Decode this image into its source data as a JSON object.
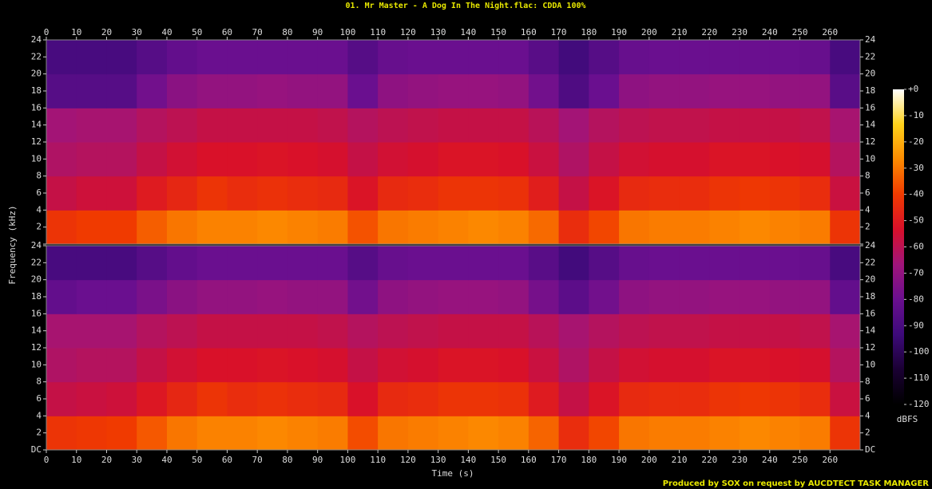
{
  "chart_data": {
    "type": "heatmap",
    "title": "01. Mr Master - A Dog In The Night.flac: CDDA 100%",
    "xlabel": "Time (s)",
    "ylabel": "Frequency (kHz)",
    "footer": "Produced by SOX on request by AUCDTECT TASK MANAGER",
    "xlim": [
      0,
      270
    ],
    "xticks": [
      0,
      10,
      20,
      30,
      40,
      50,
      60,
      70,
      80,
      90,
      100,
      110,
      120,
      130,
      140,
      150,
      160,
      170,
      180,
      190,
      200,
      210,
      220,
      230,
      240,
      250,
      260
    ],
    "ylim": [
      0,
      24
    ],
    "yticks": [
      {
        "value": 0,
        "label": "DC"
      },
      2,
      4,
      6,
      8,
      10,
      12,
      14,
      16,
      18,
      20,
      22,
      24
    ],
    "bins": [
      0,
      10,
      20,
      30,
      40,
      50,
      60,
      70,
      80,
      90,
      100,
      110,
      120,
      130,
      140,
      150,
      160,
      170,
      180,
      190,
      200,
      210,
      220,
      230,
      240,
      250,
      260,
      270
    ],
    "ybins": [
      0,
      4,
      8,
      12,
      16,
      20,
      24
    ],
    "colorbar": {
      "label": "dBFS",
      "lim": [
        -120,
        0
      ],
      "ticks": [
        {
          "value": 0,
          "label": "+0"
        },
        -10,
        -20,
        -30,
        -40,
        -50,
        -60,
        -70,
        -80,
        -90,
        -100,
        -110,
        -120
      ],
      "colors": [
        "#000000",
        "#1a0033",
        "#3d0a7a",
        "#6a0f8f",
        "#a0147a",
        "#d8102a",
        "#f03a00",
        "#fc8a00",
        "#ffd21a",
        "#ffffff"
      ]
    },
    "channels": [
      {
        "values": [
          [
            -42,
            -40,
            -40,
            -34,
            -30,
            -28,
            -28,
            -27,
            -28,
            -29,
            -36,
            -30,
            -29,
            -28,
            -27,
            -28,
            -32,
            -44,
            -38,
            -30,
            -29,
            -29,
            -28,
            -27,
            -28,
            -29,
            -42
          ],
          [
            -58,
            -56,
            -56,
            -50,
            -46,
            -42,
            -44,
            -43,
            -44,
            -45,
            -52,
            -45,
            -44,
            -42,
            -42,
            -43,
            -49,
            -58,
            -52,
            -45,
            -44,
            -44,
            -42,
            -41,
            -42,
            -44,
            -57
          ],
          [
            -63,
            -62,
            -62,
            -58,
            -55,
            -53,
            -53,
            -52,
            -53,
            -54,
            -58,
            -55,
            -54,
            -52,
            -52,
            -53,
            -57,
            -63,
            -58,
            -55,
            -54,
            -54,
            -52,
            -52,
            -53,
            -54,
            -62
          ],
          [
            -66,
            -65,
            -65,
            -62,
            -60,
            -58,
            -58,
            -58,
            -58,
            -59,
            -62,
            -60,
            -59,
            -58,
            -58,
            -58,
            -61,
            -66,
            -62,
            -60,
            -59,
            -59,
            -58,
            -58,
            -58,
            -59,
            -65
          ],
          [
            -86,
            -86,
            -86,
            -78,
            -72,
            -70,
            -70,
            -69,
            -70,
            -70,
            -80,
            -71,
            -70,
            -69,
            -69,
            -70,
            -78,
            -88,
            -80,
            -71,
            -70,
            -70,
            -69,
            -69,
            -70,
            -70,
            -85
          ],
          [
            -90,
            -90,
            -90,
            -86,
            -82,
            -80,
            -80,
            -80,
            -80,
            -80,
            -86,
            -81,
            -80,
            -80,
            -80,
            -80,
            -85,
            -92,
            -86,
            -81,
            -80,
            -80,
            -80,
            -80,
            -80,
            -81,
            -90
          ]
        ]
      },
      {
        "values": [
          [
            -42,
            -41,
            -40,
            -35,
            -30,
            -28,
            -28,
            -27,
            -28,
            -29,
            -37,
            -30,
            -29,
            -28,
            -27,
            -28,
            -33,
            -44,
            -38,
            -30,
            -29,
            -29,
            -28,
            -27,
            -28,
            -29,
            -42
          ],
          [
            -58,
            -57,
            -56,
            -51,
            -46,
            -42,
            -44,
            -43,
            -44,
            -45,
            -53,
            -45,
            -44,
            -42,
            -42,
            -43,
            -50,
            -58,
            -52,
            -45,
            -44,
            -44,
            -42,
            -41,
            -42,
            -44,
            -57
          ],
          [
            -63,
            -62,
            -62,
            -58,
            -55,
            -53,
            -53,
            -52,
            -53,
            -54,
            -58,
            -55,
            -54,
            -52,
            -52,
            -53,
            -57,
            -63,
            -58,
            -55,
            -54,
            -54,
            -52,
            -52,
            -53,
            -54,
            -62
          ],
          [
            -65,
            -65,
            -65,
            -62,
            -60,
            -58,
            -58,
            -58,
            -58,
            -59,
            -62,
            -60,
            -59,
            -58,
            -58,
            -58,
            -61,
            -65,
            -62,
            -60,
            -59,
            -59,
            -58,
            -58,
            -58,
            -59,
            -65
          ],
          [
            -82,
            -80,
            -80,
            -76,
            -72,
            -70,
            -70,
            -69,
            -70,
            -70,
            -78,
            -71,
            -70,
            -69,
            -69,
            -70,
            -77,
            -84,
            -78,
            -71,
            -70,
            -70,
            -69,
            -69,
            -70,
            -70,
            -82
          ],
          [
            -90,
            -90,
            -90,
            -86,
            -82,
            -80,
            -80,
            -80,
            -80,
            -80,
            -86,
            -81,
            -80,
            -80,
            -80,
            -80,
            -85,
            -92,
            -86,
            -81,
            -80,
            -80,
            -80,
            -80,
            -80,
            -81,
            -90
          ]
        ]
      }
    ]
  }
}
